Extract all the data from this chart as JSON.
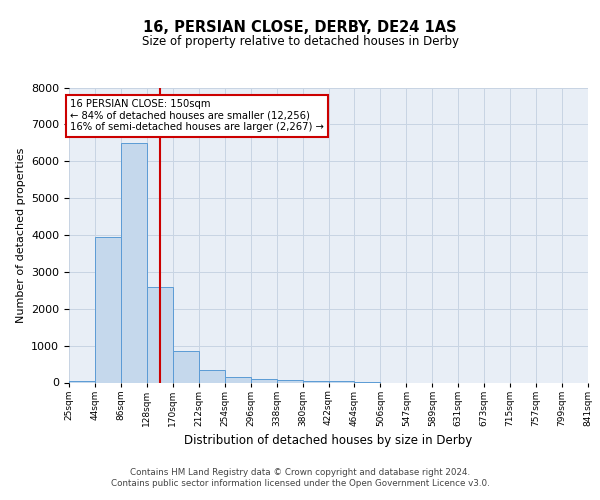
{
  "title_line1": "16, PERSIAN CLOSE, DERBY, DE24 1AS",
  "title_line2": "Size of property relative to detached houses in Derby",
  "xlabel": "Distribution of detached houses by size in Derby",
  "ylabel": "Number of detached properties",
  "annotation_title": "16 PERSIAN CLOSE: 150sqm",
  "annotation_line2": "← 84% of detached houses are smaller (12,256)",
  "annotation_line3": "16% of semi-detached houses are larger (2,267) →",
  "vline_bin": 2.5,
  "bar_heights": [
    50,
    3950,
    6500,
    2600,
    850,
    350,
    150,
    100,
    70,
    50,
    30,
    10,
    0,
    0,
    0,
    0,
    0,
    0,
    0,
    0
  ],
  "bar_color": "#c5d8ec",
  "bar_edge_color": "#5b9bd5",
  "vline_color": "#cc0000",
  "annotation_box_edge_color": "#cc0000",
  "grid_color": "#c8d4e3",
  "background_color": "#e8eef6",
  "ylim_max": 8000,
  "yticks": [
    0,
    1000,
    2000,
    3000,
    4000,
    5000,
    6000,
    7000,
    8000
  ],
  "xtick_labels": [
    "25sqm",
    "44sqm",
    "86sqm",
    "128sqm",
    "170sqm",
    "212sqm",
    "254sqm",
    "296sqm",
    "338sqm",
    "380sqm",
    "422sqm",
    "464sqm",
    "506sqm",
    "547sqm",
    "589sqm",
    "631sqm",
    "673sqm",
    "715sqm",
    "757sqm",
    "799sqm",
    "841sqm"
  ],
  "footer_line1": "Contains HM Land Registry data © Crown copyright and database right 2024.",
  "footer_line2": "Contains public sector information licensed under the Open Government Licence v3.0."
}
